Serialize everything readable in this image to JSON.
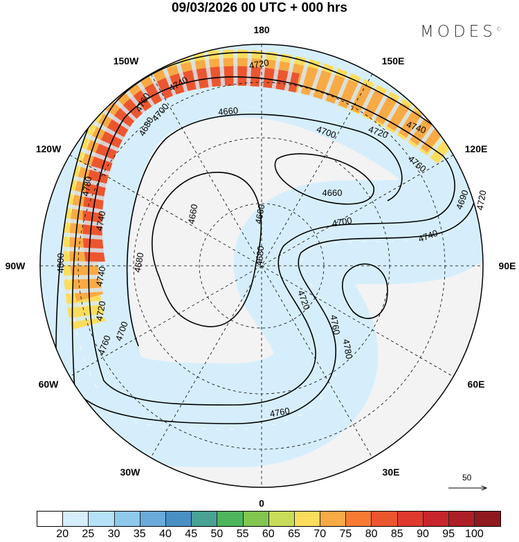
{
  "title": "09/03/2026  00 UTC  + 000 hrs",
  "logo": "MODES",
  "logo_mark": "©",
  "longitude_labels": [
    "180",
    "150E",
    "120E",
    "90E",
    "60E",
    "30E",
    "0",
    "30W",
    "60W",
    "90W",
    "120W",
    "150W"
  ],
  "contour_labels": [
    "4800",
    "4780",
    "4760",
    "4740",
    "4720",
    "4700",
    "4680",
    "4660",
    "4740",
    "4760",
    "4700",
    "4720",
    "4740",
    "4720",
    "4690",
    "4700",
    "4740",
    "4660",
    "4660",
    "4660",
    "4680",
    "4720",
    "4760",
    "4780",
    "4760",
    "4740",
    "4720",
    "4700",
    "4760",
    "4680"
  ],
  "vector_reference": "50",
  "colorbar": {
    "ticks": [
      "20",
      "25",
      "30",
      "35",
      "40",
      "45",
      "50",
      "55",
      "60",
      "65",
      "70",
      "75",
      "80",
      "85",
      "90",
      "95",
      "100"
    ],
    "colors": [
      "#ffffff",
      "#d6eefb",
      "#b5e1f7",
      "#8ec9ec",
      "#6aaada",
      "#4a8fc4",
      "#48a394",
      "#4fb55c",
      "#82c650",
      "#c9dc59",
      "#fbdd5e",
      "#f8aa45",
      "#f77a33",
      "#ec562f",
      "#e03a2f",
      "#c8262c",
      "#ad1f26",
      "#8e1a1f"
    ]
  }
}
